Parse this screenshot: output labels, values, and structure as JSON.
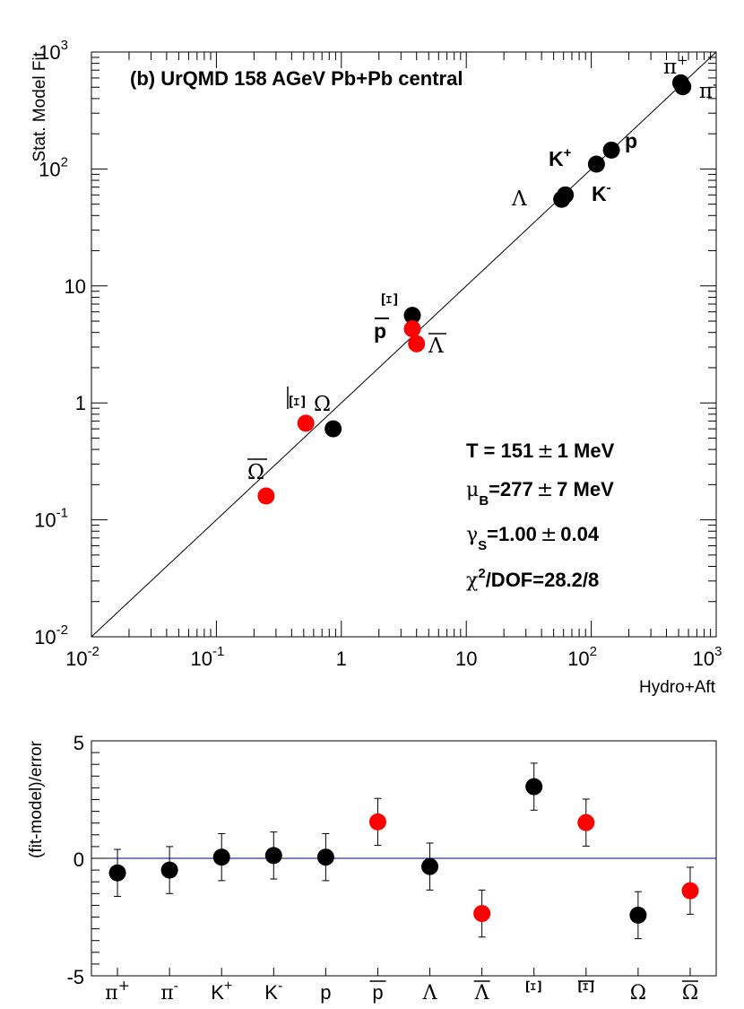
{
  "chart_data": [
    {
      "type": "scatter",
      "title": "(b) UrQMD 158 AGeV Pb+Pb central",
      "xlabel": "Hydro+Aft",
      "ylabel": "Stat. Model Fit",
      "xscale": "log",
      "yscale": "log",
      "xlim": [
        0.01,
        1000
      ],
      "ylim": [
        0.01,
        1000
      ],
      "x_ticks": [
        {
          "value": 0.01,
          "base": "10",
          "exp": "-2"
        },
        {
          "value": 0.1,
          "base": "10",
          "exp": "-1"
        },
        {
          "value": 1,
          "base": "1",
          "exp": ""
        },
        {
          "value": 10,
          "base": "10",
          "exp": ""
        },
        {
          "value": 100,
          "base": "10",
          "exp": "2"
        },
        {
          "value": 1000,
          "base": "10",
          "exp": "3"
        }
      ],
      "y_ticks": [
        {
          "value": 0.01,
          "base": "10",
          "exp": "-2"
        },
        {
          "value": 0.1,
          "base": "10",
          "exp": "-1"
        },
        {
          "value": 1,
          "base": "1",
          "exp": ""
        },
        {
          "value": 10,
          "base": "10",
          "exp": ""
        },
        {
          "value": 100,
          "base": "10",
          "exp": "2"
        },
        {
          "value": 1000,
          "base": "10",
          "exp": "3"
        }
      ],
      "reference_line": "y = x",
      "points": [
        {
          "name": "π+",
          "x": 520,
          "y": 545,
          "color": "#000000"
        },
        {
          "name": "π-",
          "x": 540,
          "y": 505,
          "color": "#000000"
        },
        {
          "name": "K+",
          "x": 110,
          "y": 110,
          "color": "#000000"
        },
        {
          "name": "K-",
          "x": 62,
          "y": 60,
          "color": "#000000"
        },
        {
          "name": "p",
          "x": 145,
          "y": 145,
          "color": "#000000"
        },
        {
          "name": "Λ",
          "x": 58,
          "y": 55,
          "color": "#000000"
        },
        {
          "name": "Ξ",
          "x": 3.7,
          "y": 5.6,
          "color": "#000000"
        },
        {
          "name": "p̄",
          "x": 3.7,
          "y": 4.3,
          "color": "#ff0000"
        },
        {
          "name": "Λ̄",
          "x": 4.0,
          "y": 3.2,
          "color": "#ff0000"
        },
        {
          "name": "Ξ̄",
          "x": 0.52,
          "y": 0.67,
          "color": "#ff0000"
        },
        {
          "name": "Ω",
          "x": 0.86,
          "y": 0.6,
          "color": "#000000"
        },
        {
          "name": "Ω̄",
          "x": 0.25,
          "y": 0.16,
          "color": "#ff0000"
        }
      ],
      "point_labels": [
        {
          "text": "π",
          "sup": "+"
        },
        {
          "text": "π",
          "sup": "-"
        },
        {
          "text": "K",
          "sup": "+"
        },
        {
          "text": "K",
          "sup": "-"
        },
        {
          "text": "p",
          "sup": ""
        },
        {
          "text": "Λ",
          "sup": ""
        },
        {
          "text": "Ξ",
          "sup": ""
        },
        {
          "text": "p",
          "sup": ""
        },
        {
          "text": "Λ",
          "sup": ""
        },
        {
          "text": "Ξ",
          "sup": ""
        },
        {
          "text": "Ω",
          "sup": ""
        },
        {
          "text": "Ω",
          "sup": ""
        }
      ],
      "fit_results": {
        "T": {
          "label": "T = 151",
          "pm": "±",
          "value": "1 MeV"
        },
        "muB": {
          "sym": "μ",
          "sub": "B",
          "label": "=277",
          "pm": "±",
          "value": "7 MeV"
        },
        "gammaS": {
          "sym": "γ",
          "sub": "S",
          "label": "=1.00",
          "pm": "±",
          "value": "0.04"
        },
        "chi2": {
          "sym": "χ",
          "sup": "2",
          "label": "/DOF=28.2/8"
        }
      }
    },
    {
      "type": "scatter",
      "title": "",
      "xlabel": "",
      "ylabel": "(fit-model)/error",
      "ylim": [
        -5,
        5
      ],
      "y_ticks": [
        "-5",
        "0",
        "5"
      ],
      "reference_line": {
        "y": 0,
        "color": "#000080"
      },
      "categories": [
        "π+",
        "π-",
        "K+",
        "K-",
        "p",
        "p̄",
        "Λ",
        "Λ̄",
        "Ξ",
        "Ξ̄",
        "Ω",
        "Ω̄"
      ],
      "category_labels": [
        {
          "text": "π",
          "sup": "+"
        },
        {
          "text": "π",
          "sup": "-"
        },
        {
          "text": "K",
          "sup": "+"
        },
        {
          "text": "K",
          "sup": "-"
        },
        {
          "text": "p",
          "sup": ""
        },
        {
          "text": "p",
          "sup": ""
        },
        {
          "text": "Λ",
          "sup": ""
        },
        {
          "text": "Λ",
          "sup": ""
        },
        {
          "text": "Ξ",
          "sup": ""
        },
        {
          "text": "Ξ",
          "sup": ""
        },
        {
          "text": "Ω",
          "sup": ""
        },
        {
          "text": "Ω",
          "sup": ""
        }
      ],
      "values": [
        -0.62,
        -0.5,
        0.05,
        0.12,
        0.05,
        1.55,
        -0.35,
        -2.35,
        3.05,
        1.52,
        -2.42,
        -1.38
      ],
      "errors": [
        1,
        1,
        1,
        1,
        1,
        1,
        1,
        1,
        1,
        1,
        1,
        1
      ],
      "colors": [
        "#000000",
        "#000000",
        "#000000",
        "#000000",
        "#000000",
        "#ff0000",
        "#000000",
        "#ff0000",
        "#000000",
        "#ff0000",
        "#000000",
        "#ff0000"
      ]
    }
  ]
}
